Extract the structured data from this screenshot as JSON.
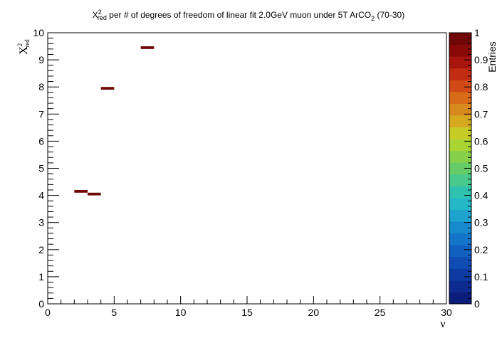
{
  "chart_data": {
    "type": "heatmap",
    "title": {
      "symbol": "X",
      "sup": "2",
      "sub": "red",
      "text": " per # of degrees of freedom of linear fit 2.0GeV muon under 5T ArCO",
      "formula_sub": "2",
      "suffix": " (70-30)"
    },
    "xlabel": "ν",
    "ylabel": {
      "symbol": "X",
      "sup": "2",
      "sub": "red"
    },
    "xlim": [
      0,
      30
    ],
    "ylim": [
      0,
      10
    ],
    "x_ticks": [
      0,
      5,
      10,
      15,
      20,
      25,
      30
    ],
    "y_ticks": [
      0,
      1,
      2,
      3,
      4,
      5,
      6,
      7,
      8,
      9,
      10
    ],
    "bins": {
      "x_width": 1,
      "y_width": 0.1
    },
    "cells": [
      {
        "x": 2.5,
        "y": 4.15,
        "z": 1
      },
      {
        "x": 3.5,
        "y": 4.05,
        "z": 1
      },
      {
        "x": 4.5,
        "y": 7.95,
        "z": 1
      },
      {
        "x": 7.5,
        "y": 9.45,
        "z": 1
      }
    ],
    "colorbar": {
      "min": 0,
      "max": 1,
      "ticks": [
        0,
        0.1,
        0.2,
        0.3,
        0.4,
        0.5,
        0.6,
        0.7,
        0.8,
        0.9,
        1
      ],
      "colors": [
        "#0b1c7a",
        "#0c2a8f",
        "#0d3aa3",
        "#0f4cb3",
        "#1160c0",
        "#1375c9",
        "#178ace",
        "#1ea3cf",
        "#24b7c6",
        "#2fc3af",
        "#48c98e",
        "#66cc69",
        "#87d04a",
        "#aad433",
        "#c8cc26",
        "#d6a91f",
        "#d98a1c",
        "#d86a18",
        "#d04a15",
        "#c22c12",
        "#a8140e",
        "#8a0a0a",
        "#6f0707"
      ],
      "label": "Entries"
    }
  }
}
